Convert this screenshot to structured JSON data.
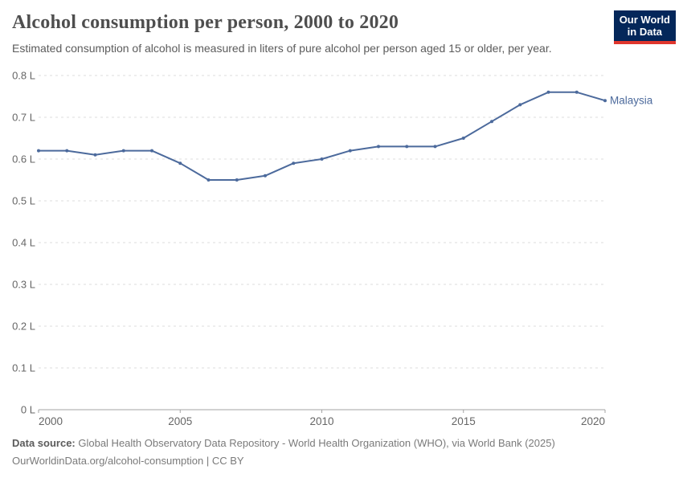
{
  "header": {
    "title": "Alcohol consumption per person, 2000 to 2020",
    "subtitle": "Estimated consumption of alcohol is measured in liters of pure alcohol per person aged 15 or older, per year.",
    "logo": {
      "line1": "Our World",
      "line2": "in Data",
      "bg_color": "#04275a",
      "accent_color": "#e0362d"
    }
  },
  "chart_data": {
    "type": "line",
    "title": "Alcohol consumption per person, 2000 to 2020",
    "x": [
      2000,
      2001,
      2002,
      2003,
      2004,
      2005,
      2006,
      2007,
      2008,
      2009,
      2010,
      2011,
      2012,
      2013,
      2014,
      2015,
      2016,
      2017,
      2018,
      2019,
      2020
    ],
    "series": [
      {
        "name": "Malaysia",
        "color": "#4c6a9c",
        "values": [
          0.62,
          0.62,
          0.61,
          0.62,
          0.62,
          0.59,
          0.55,
          0.55,
          0.56,
          0.59,
          0.6,
          0.62,
          0.63,
          0.63,
          0.63,
          0.65,
          0.69,
          0.73,
          0.76,
          0.76,
          0.74
        ]
      }
    ],
    "xlabel": "",
    "ylabel": "",
    "ylim": [
      0,
      0.8
    ],
    "xlim": [
      2000,
      2020
    ],
    "ytick_values": [
      0,
      0.1,
      0.2,
      0.3,
      0.4,
      0.5,
      0.6,
      0.7,
      0.8
    ],
    "ytick_labels": [
      "0 L",
      "0.1 L",
      "0.2 L",
      "0.3 L",
      "0.4 L",
      "0.5 L",
      "0.6 L",
      "0.7 L",
      "0.8 L"
    ],
    "xtick_values": [
      2000,
      2005,
      2010,
      2015,
      2020
    ],
    "xtick_labels": [
      "2000",
      "2005",
      "2010",
      "2015",
      "2020"
    ],
    "grid": "horizontal-dashed",
    "legend_position": "end-of-line",
    "colors": {
      "grid": "#dddddd",
      "axis": "#a3a3a3",
      "tick_text": "#666666"
    }
  },
  "footer": {
    "datasource_label": "Data source:",
    "datasource_rest": " Global Health Observatory Data Repository - World Health Organization (WHO), via World Bank (2025)",
    "link": "OurWorldinData.org/alcohol-consumption",
    "license": " | CC BY"
  }
}
